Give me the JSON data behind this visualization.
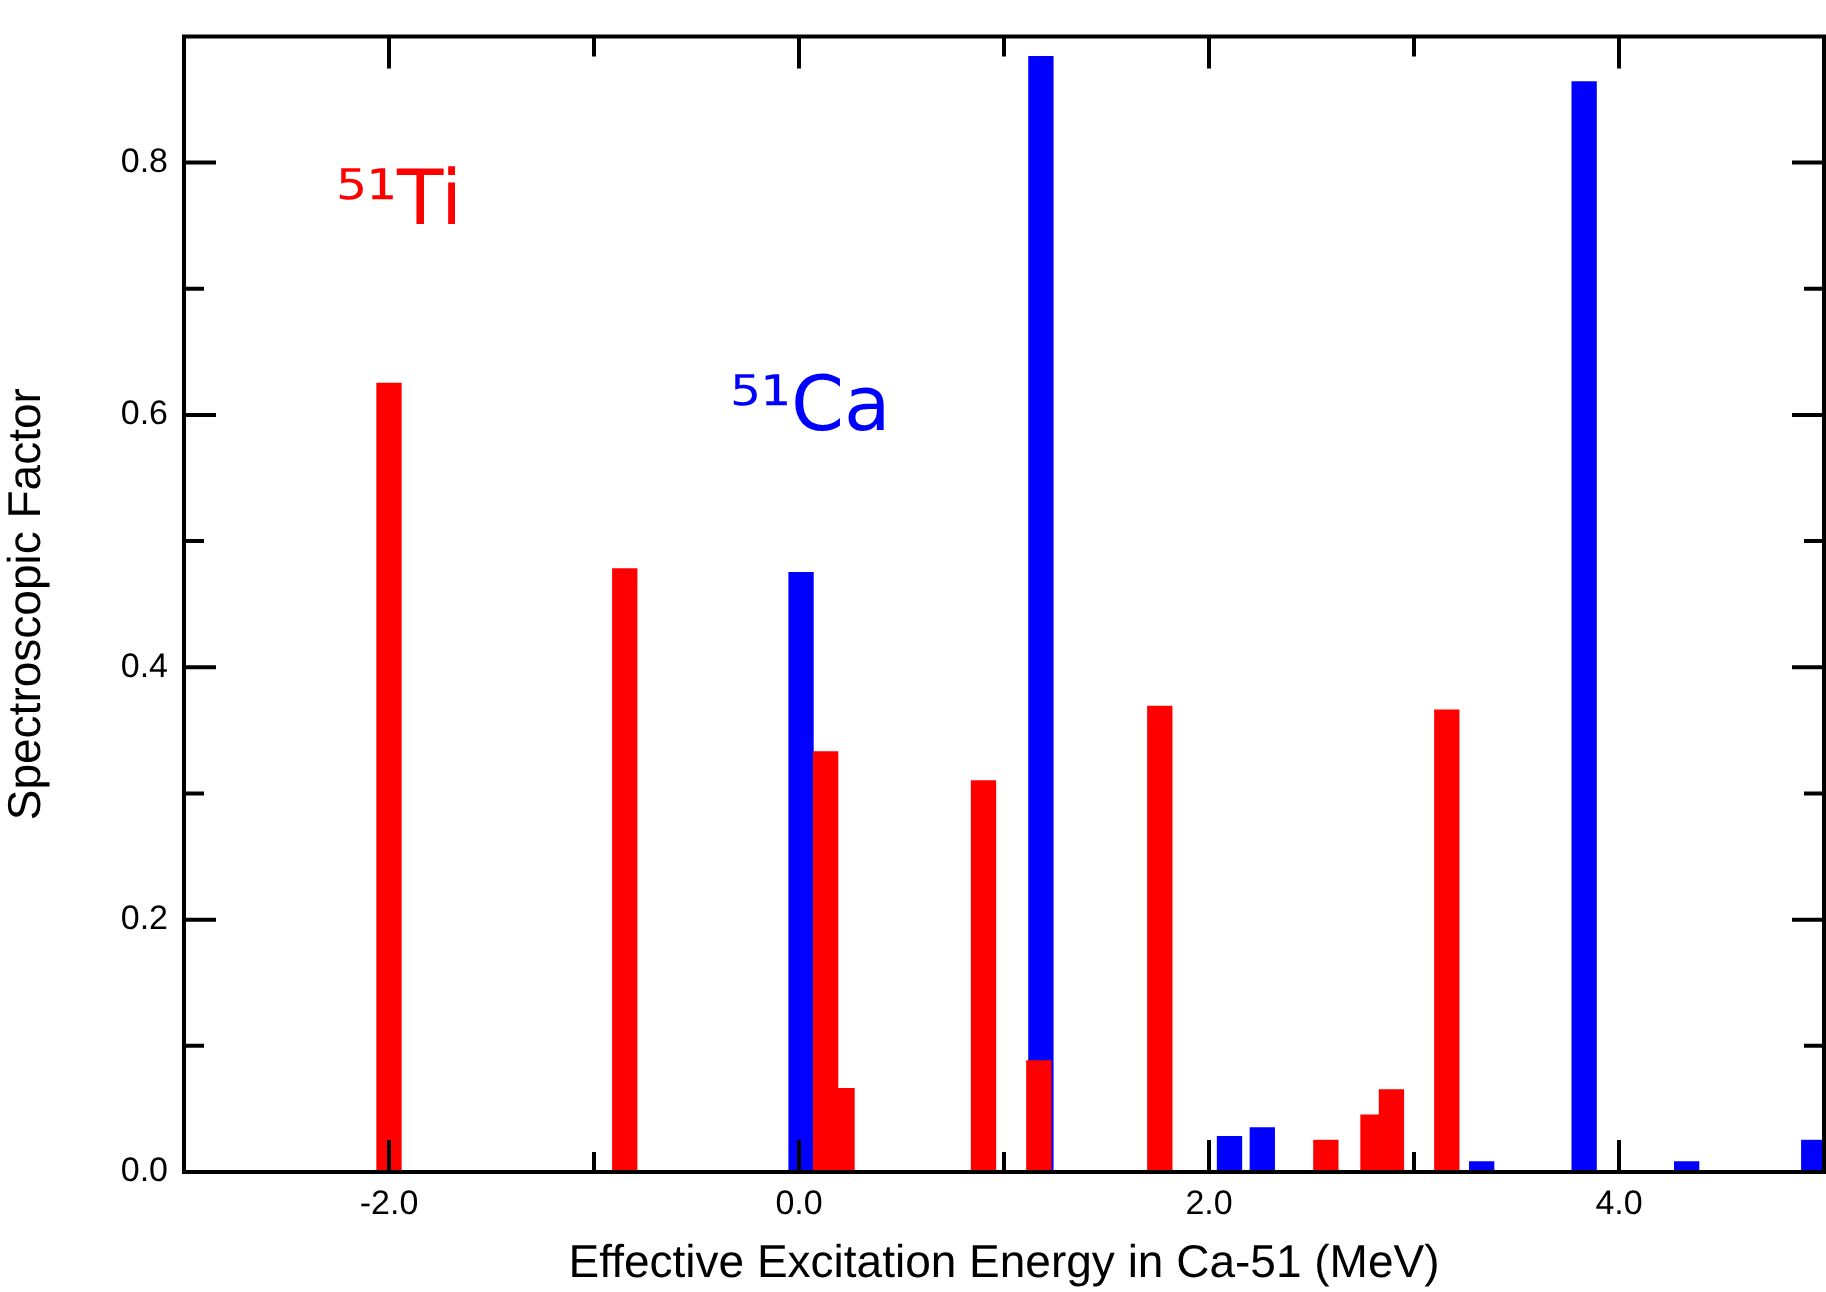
{
  "chart_data": {
    "type": "bar",
    "xlabel": "Effective Excitation Energy in Ca-51 (MeV)",
    "ylabel": "Spectroscopic Factor",
    "xlim": [
      -3,
      5
    ],
    "xticks": [
      {
        "value": -2,
        "label": "-2.0"
      },
      {
        "value": -1,
        "label": null
      },
      {
        "value": 0,
        "label": "0.0"
      },
      {
        "value": 1,
        "label": null
      },
      {
        "value": 2,
        "label": "2.0"
      },
      {
        "value": 3,
        "label": null
      },
      {
        "value": 4,
        "label": "4.0"
      }
    ],
    "ylim": [
      0,
      0.9
    ],
    "yticks": [
      {
        "value": 0,
        "label": "0.0"
      },
      {
        "value": 0.1,
        "label": null
      },
      {
        "value": 0.2,
        "label": "0.2"
      },
      {
        "value": 0.3,
        "label": null
      },
      {
        "value": 0.4,
        "label": "0.4"
      },
      {
        "value": 0.5,
        "label": null
      },
      {
        "value": 0.6,
        "label": "0.6"
      },
      {
        "value": 0.7,
        "label": null
      },
      {
        "value": 0.8,
        "label": "0.8"
      }
    ],
    "grid": false,
    "legend": false,
    "series": [
      {
        "name": "⁵¹Ca",
        "color": "#0000ff",
        "x": [
          0.01,
          1.18,
          2.1,
          2.26,
          3.33,
          3.83,
          4.33,
          4.95
        ],
        "values": [
          0.475,
          0.884,
          0.028,
          0.035,
          0.008,
          0.864,
          0.008,
          0.025
        ]
      },
      {
        "name": "⁵¹Ti",
        "color": "#ff0000",
        "x": [
          -2.0,
          -0.85,
          0.13,
          0.21,
          0.9,
          1.17,
          1.76,
          2.57,
          2.8,
          2.89,
          3.16
        ],
        "values": [
          0.625,
          0.478,
          0.333,
          0.066,
          0.31,
          0.088,
          0.369,
          0.025,
          0.045,
          0.065,
          0.366
        ]
      }
    ]
  }
}
